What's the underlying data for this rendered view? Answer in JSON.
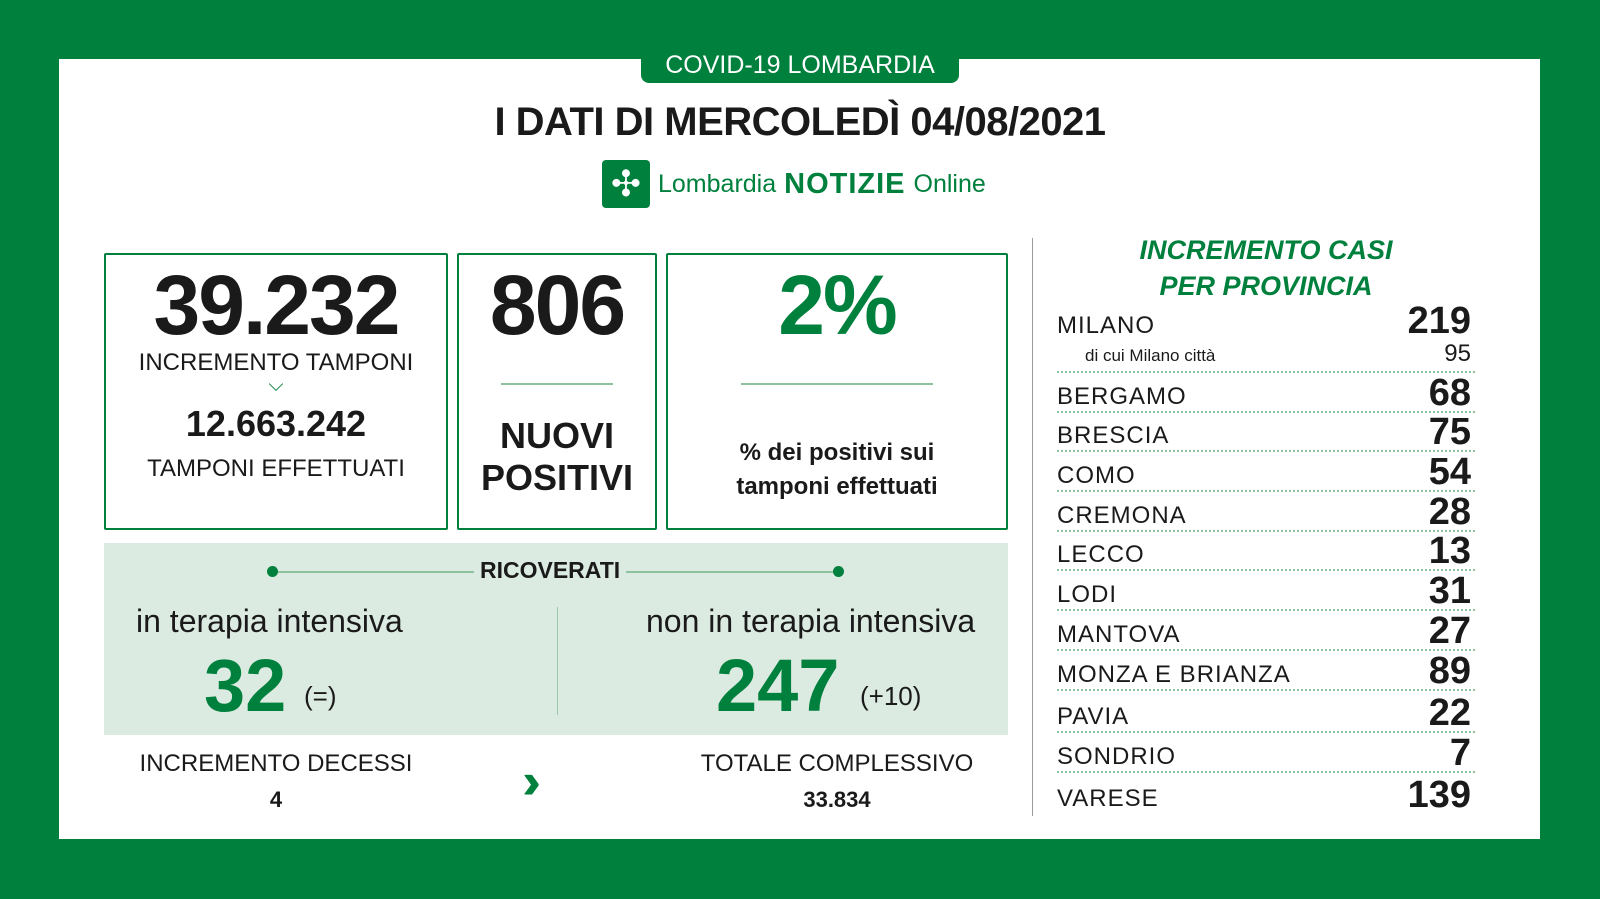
{
  "header": {
    "tag": "COVID-19 LOMBARDIA",
    "title": "I DATI DI MERCOLEDÌ 04/08/2021",
    "logo": {
      "icon": "lombardia-rose-icon",
      "text1": "Lombardia",
      "text2": "NOTIZIE",
      "text3": "Online"
    }
  },
  "tamponi": {
    "value": "39.232",
    "label": "INCREMENTO TAMPONI",
    "total": "12.663.242",
    "total_label": "TAMPONI EFFETTUATI"
  },
  "positivi": {
    "value": "806",
    "label1": "NUOVI",
    "label2": "POSITIVI"
  },
  "percent": {
    "value": "2%",
    "label1": "% dei positivi sui",
    "label2": "tamponi effettuati"
  },
  "ricoverati": {
    "title": "RICOVERATI",
    "ti_label": "in terapia intensiva",
    "ti_value": "32",
    "ti_delta": "(=)",
    "nti_label": "non in terapia intensiva",
    "nti_value": "247",
    "nti_delta": "(+10)"
  },
  "decessi": {
    "label": "INCREMENTO DECESSI",
    "value": "4",
    "total_label": "TOTALE COMPLESSIVO",
    "total": "33.834"
  },
  "province": {
    "title1": "INCREMENTO CASI",
    "title2": "PER PROVINCIA",
    "milano_city_label": "di cui Milano città",
    "milano_city_value": "95",
    "items": [
      {
        "name": "MILANO",
        "value": "219"
      },
      {
        "name": "BERGAMO",
        "value": "68"
      },
      {
        "name": "BRESCIA",
        "value": "75"
      },
      {
        "name": "COMO",
        "value": "54"
      },
      {
        "name": "CREMONA",
        "value": "28"
      },
      {
        "name": "LECCO",
        "value": "13"
      },
      {
        "name": "LODI",
        "value": "31"
      },
      {
        "name": "MANTOVA",
        "value": "27"
      },
      {
        "name": "MONZA E BRIANZA",
        "value": "89"
      },
      {
        "name": "PAVIA",
        "value": "22"
      },
      {
        "name": "SONDRIO",
        "value": "7"
      },
      {
        "name": "VARESE",
        "value": "139"
      }
    ]
  },
  "colors": {
    "brand": "#00803d",
    "panel": "#dcebe2"
  }
}
